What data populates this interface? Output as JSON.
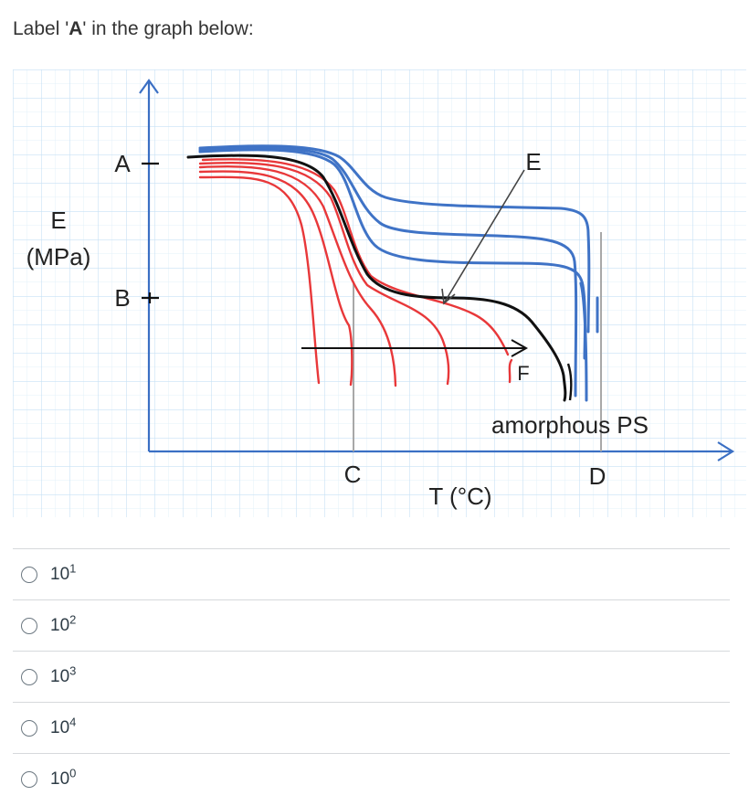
{
  "question": {
    "prefix": "Label '",
    "bold": "A",
    "suffix": "' in the graph below:"
  },
  "figure": {
    "y_label_line1": "E",
    "y_label_line2": "(MPa)",
    "x_label": "T (°C)",
    "tick_A": "A",
    "tick_B": "B",
    "label_C": "C",
    "label_D": "D",
    "label_E": "E",
    "label_F": "F",
    "annotation": "amorphous PS",
    "colors": {
      "grid": "#cfe6f7",
      "red": "#e8383a",
      "blue": "#3f73c6",
      "black": "#111111",
      "axis": "#3a6fc4",
      "guide": "#a8a8a8"
    }
  },
  "answers": [
    {
      "base": "10",
      "exp": "1"
    },
    {
      "base": "10",
      "exp": "2"
    },
    {
      "base": "10",
      "exp": "3"
    },
    {
      "base": "10",
      "exp": "4"
    },
    {
      "base": "10",
      "exp": "0"
    }
  ]
}
